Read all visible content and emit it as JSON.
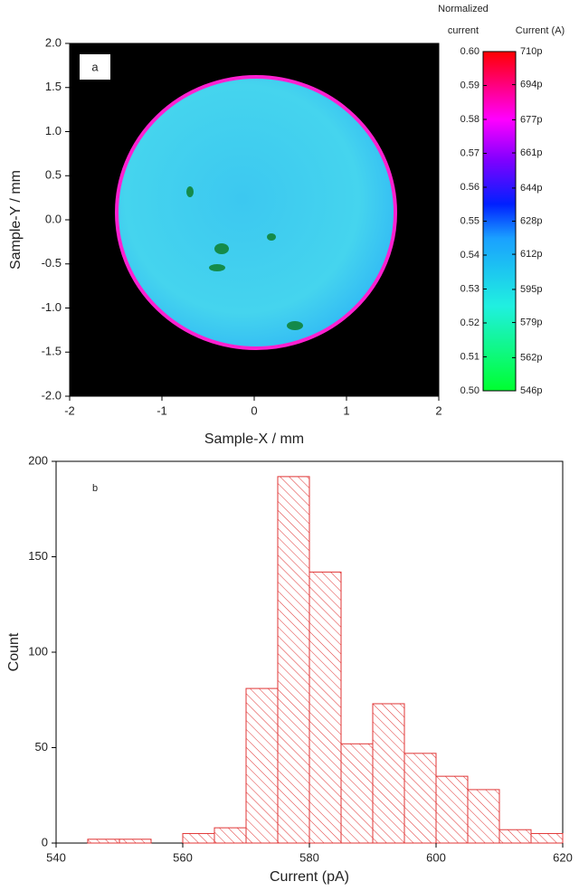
{
  "chart_data": [
    {
      "type": "heatmap",
      "panel_label": "a",
      "x_label": "Sample-X / mm",
      "y_label": "Sample-Y / mm",
      "xlim": [
        -2,
        2
      ],
      "xticks": [
        -2,
        -1,
        0,
        1,
        2
      ],
      "ylim": [
        -2,
        2
      ],
      "yticks": [
        {
          "value": -2,
          "label": "-2.0"
        },
        -1.5,
        {
          "value": -1,
          "label": "-1.0"
        },
        -0.5,
        {
          "value": 0,
          "label": "0.0"
        },
        0.5,
        {
          "value": 1,
          "label": "1.0"
        },
        1.5,
        {
          "value": 2,
          "label": "2.0"
        }
      ],
      "colorbar": {
        "title": "Normalized current",
        "title2": "Current (A)",
        "zlim": [
          0.5,
          0.6
        ],
        "zticks": [
          {
            "value": 0.5,
            "label": "0.50"
          },
          0.51,
          0.52,
          0.53,
          0.54,
          0.55,
          0.56,
          0.57,
          0.58,
          0.59,
          {
            "value": 0.6,
            "label": "0.60"
          }
        ],
        "z2lim": [
          5.46e-10,
          7.1e-10
        ],
        "z2ticks": [
          {
            "value": 5.46e-10,
            "label": "546p"
          },
          {
            "value": 5.62e-10,
            "label": "562p"
          },
          {
            "value": 5.79e-10,
            "label": "579p"
          },
          {
            "value": 5.95e-10,
            "label": "595p"
          },
          {
            "value": 6.12e-10,
            "label": "612p"
          },
          {
            "value": 6.28e-10,
            "label": "628p"
          },
          {
            "value": 6.44e-10,
            "label": "644p"
          },
          {
            "value": 6.61e-10,
            "label": "661p"
          },
          {
            "value": 6.77e-10,
            "label": "677p"
          },
          {
            "value": 6.94e-10,
            "label": "694p"
          },
          {
            "value": 7.1e-10,
            "label": "710p"
          }
        ]
      }
    },
    {
      "type": "histogram",
      "panel_label": "b",
      "x_label": "Current (pA)",
      "y_label": "Count",
      "bins": [
        545,
        550,
        555,
        560,
        565,
        570,
        575,
        580,
        585,
        590,
        595,
        600,
        605,
        610,
        615,
        620
      ],
      "values": [
        2,
        2,
        0,
        5,
        8,
        81,
        192,
        142,
        52,
        73,
        47,
        35,
        28,
        7,
        5
      ],
      "color": "#e03535",
      "xlim": [
        540,
        620
      ],
      "xticks": [
        540,
        560,
        580,
        600,
        620
      ],
      "ylim": [
        0,
        200
      ],
      "yticks": [
        0,
        50,
        100,
        150,
        200
      ]
    }
  ]
}
